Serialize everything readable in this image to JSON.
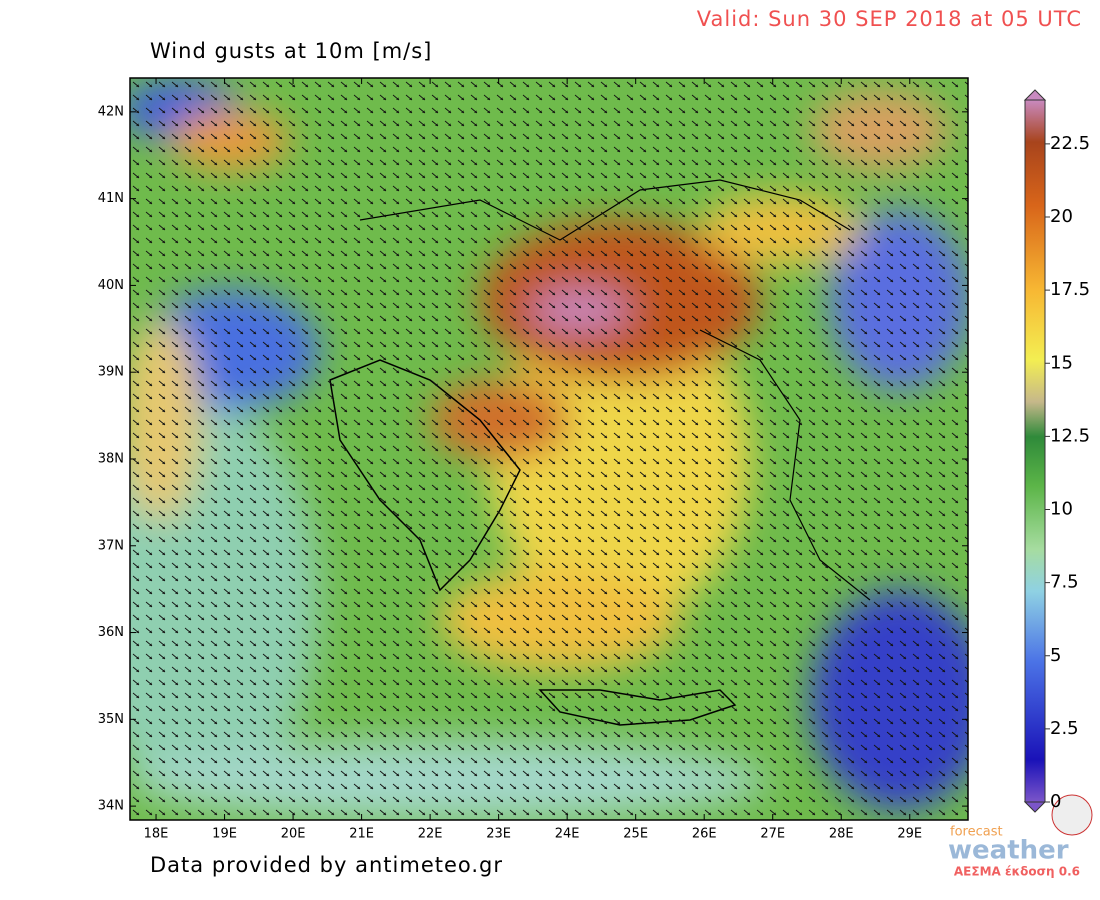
{
  "map": {
    "valid": "Valid: Sun 30 SEP 2018 at 05 UTC",
    "title": "Wind gusts at 10m [m/s]",
    "footer": "Data provided by antimeteo.gr",
    "logo": {
      "small": "forecast",
      "big": "weather",
      "caption": "ΑΕΣΜΑ έκδοση 0.6"
    },
    "xlim": [
      17.62,
      29.85
    ],
    "ylim": [
      33.84,
      42.39
    ],
    "xticks": [
      {
        "value": 18,
        "label": "18E"
      },
      {
        "value": 19,
        "label": "19E"
      },
      {
        "value": 20,
        "label": "20E"
      },
      {
        "value": 21,
        "label": "21E"
      },
      {
        "value": 22,
        "label": "22E"
      },
      {
        "value": 23,
        "label": "23E"
      },
      {
        "value": 24,
        "label": "24E"
      },
      {
        "value": 25,
        "label": "25E"
      },
      {
        "value": 26,
        "label": "26E"
      },
      {
        "value": 27,
        "label": "27E"
      },
      {
        "value": 28,
        "label": "28E"
      },
      {
        "value": 29,
        "label": "29E"
      }
    ],
    "yticks": [
      {
        "value": 34,
        "label": "34N"
      },
      {
        "value": 35,
        "label": "35N"
      },
      {
        "value": 36,
        "label": "36N"
      },
      {
        "value": 37,
        "label": "37N"
      },
      {
        "value": 38,
        "label": "38N"
      },
      {
        "value": 39,
        "label": "39N"
      },
      {
        "value": 40,
        "label": "40N"
      },
      {
        "value": 41,
        "label": "41N"
      },
      {
        "value": 42,
        "label": "42N"
      }
    ],
    "colorbar": {
      "lim": [
        0,
        24
      ],
      "ticks": [
        0,
        2.5,
        5,
        7.5,
        10,
        12.5,
        15,
        17.5,
        20,
        22.5
      ]
    }
  }
}
